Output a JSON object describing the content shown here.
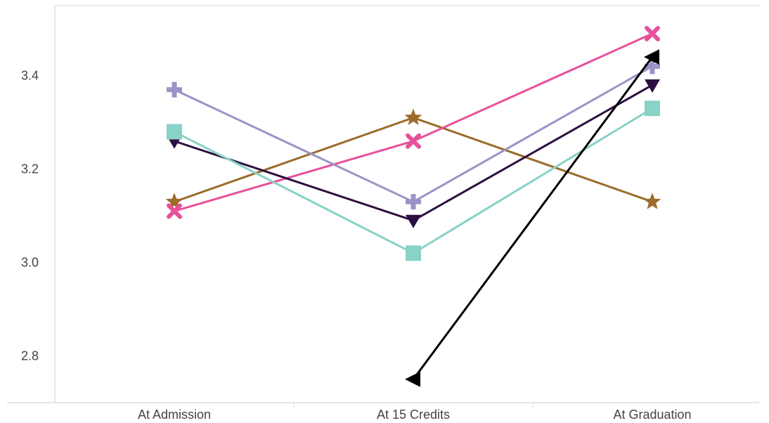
{
  "chart_data": {
    "type": "line",
    "title": "",
    "xlabel": "",
    "ylabel": "",
    "categories": [
      "At Admission",
      "At 15 Credits",
      "At Graduation"
    ],
    "ylim": [
      2.7,
      3.55
    ],
    "yticks": [
      2.8,
      3.0,
      3.2,
      3.4
    ],
    "ytick_labels": [
      "2.8",
      "3.0",
      "3.2",
      "3.4"
    ],
    "grid": false,
    "series": [
      {
        "values": [
          3.13,
          3.31,
          3.13
        ],
        "color": "#9b6b2a",
        "marker": "star"
      },
      {
        "values": [
          3.11,
          3.26,
          3.49
        ],
        "color": "#e8509a",
        "marker": "x"
      },
      {
        "values": [
          3.37,
          3.13,
          3.42
        ],
        "color": "#9b93c8",
        "marker": "plus"
      },
      {
        "values": [
          3.26,
          3.09,
          3.38
        ],
        "color": "#2c0f3f",
        "marker": "triangle-down"
      },
      {
        "values": [
          3.28,
          3.02,
          3.33
        ],
        "color": "#88d2c8",
        "marker": "square"
      },
      {
        "values": [
          null,
          2.75,
          3.44
        ],
        "color": "#000000",
        "marker": "triangle-left"
      }
    ]
  }
}
